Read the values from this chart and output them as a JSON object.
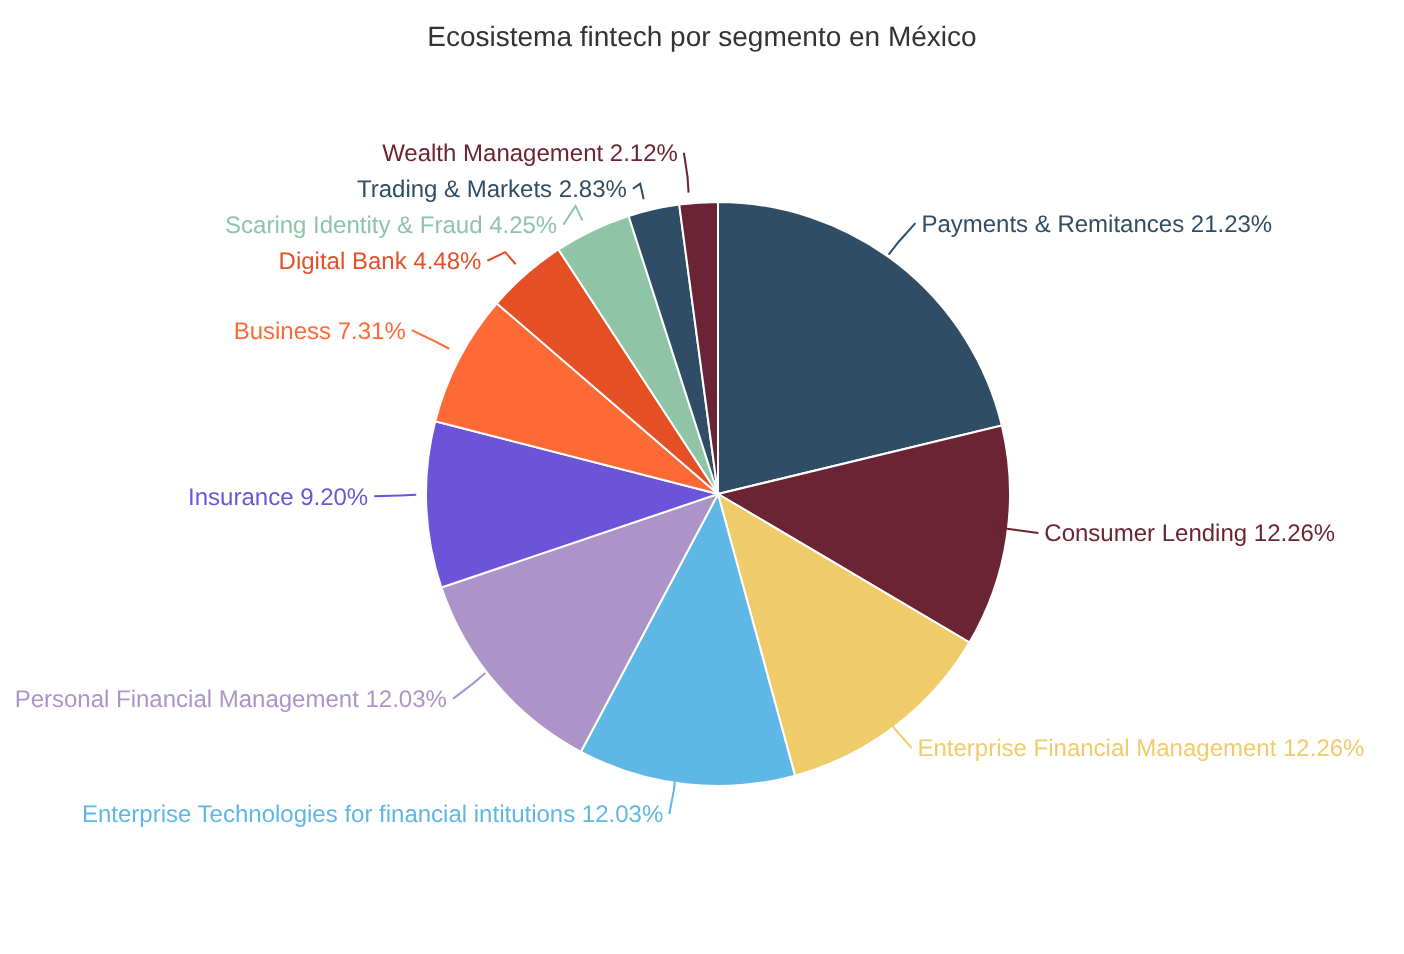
{
  "chart_data": {
    "type": "pie",
    "title": "Ecosistema fintech por segmento en México",
    "categories": [
      "Payments & Remitances",
      "Consumer Lending",
      "Enterprise Financial Management",
      "Enterprise Technologies for financial intitutions",
      "Personal Financial Management",
      "Insurance",
      "Business",
      "Digital Bank",
      "Scaring Identity & Fraud",
      "Trading & Markets",
      "Wealth Management"
    ],
    "values": [
      21.23,
      12.26,
      12.26,
      12.03,
      12.03,
      9.2,
      7.31,
      4.48,
      4.25,
      2.83,
      2.12
    ],
    "value_labels": [
      "21.23%",
      "12.26%",
      "12.26%",
      "12.03%",
      "12.03%",
      "9.20%",
      "7.31%",
      "4.48%",
      "4.25%",
      "2.83%",
      "2.12%"
    ],
    "colors": [
      "#2f4e66",
      "#6b2433",
      "#f0cb69",
      "#5fb7e5",
      "#ad94c8",
      "#6c54d8",
      "#fd6a36",
      "#e44f26",
      "#8fc4a6",
      "#2f4e66",
      "#6b2433"
    ],
    "legend": false
  }
}
